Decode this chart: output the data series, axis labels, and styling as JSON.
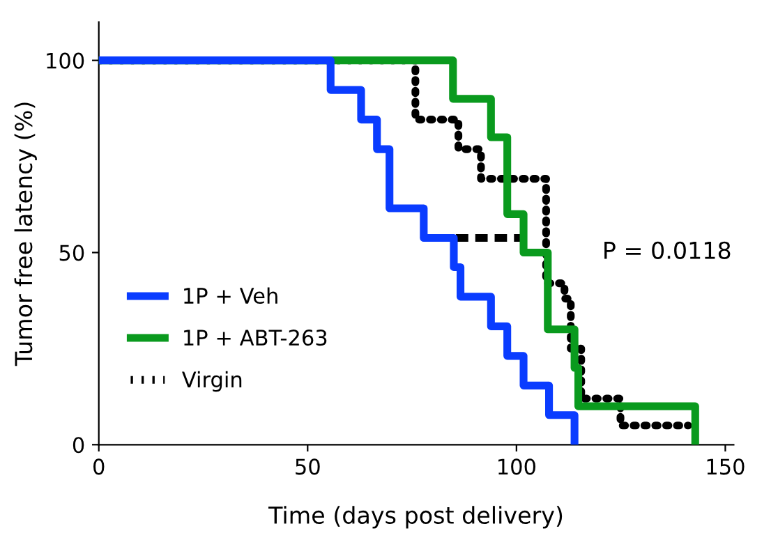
{
  "chart_data": {
    "type": "step",
    "xlabel": "Time (days post delivery)",
    "ylabel": "Tumor free latency (%)",
    "xlim": [
      0,
      152
    ],
    "xticks": [
      0,
      50,
      100,
      150
    ],
    "ylim": [
      0,
      110
    ],
    "yticks": [
      0,
      50,
      100
    ],
    "grid": false,
    "legend": "bottom left",
    "marker": "none",
    "annotations": [
      "P = 0.0118"
    ],
    "series": [
      {
        "name": "1P + Veh",
        "color": "#0a3cff",
        "line_style": "solid",
        "x": [
          0,
          55.5,
          62.8,
          66.6,
          69.6,
          77.8,
          85.0,
          86.6,
          93.9,
          97.8,
          101.7,
          107.8,
          113.9
        ],
        "values": [
          100,
          92.3,
          84.6,
          76.9,
          61.5,
          53.8,
          46.2,
          38.5,
          30.8,
          23.1,
          15.4,
          7.7,
          0
        ]
      },
      {
        "name": "1P + ABT-263",
        "color": "#0a9a1e",
        "line_style": "solid",
        "x": [
          0,
          84.8,
          93.9,
          97.8,
          101.7,
          107.5,
          113.9,
          114.8,
          142.8
        ],
        "values": [
          100,
          90,
          80,
          60,
          50,
          30,
          20,
          10,
          0
        ]
      },
      {
        "name": "Virgin",
        "color": "#000000",
        "line_style": "dotted",
        "x": [
          0,
          75.8,
          86.1,
          91.5,
          107.1,
          111.5,
          113,
          115.5,
          124.9,
          141.1
        ],
        "values": [
          100,
          84.6,
          76.9,
          69.2,
          42,
          38,
          25,
          12,
          5,
          5
        ]
      },
      {
        "color": "#000000",
        "line_style": "dashed",
        "type": "line",
        "x": [
          85.5,
          102.2
        ],
        "values": [
          53.8,
          53.8
        ]
      }
    ]
  }
}
